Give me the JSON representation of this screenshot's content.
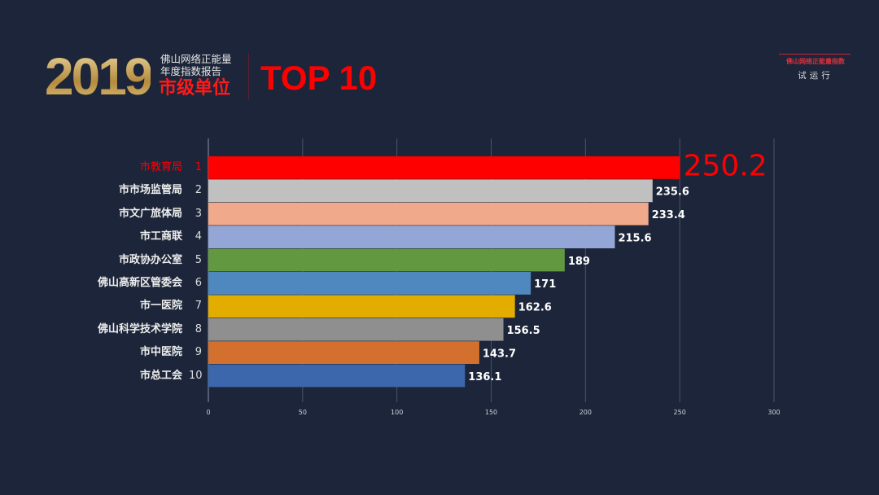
{
  "header": {
    "year": "2019",
    "subtitle_line1": "佛山网络正能量",
    "subtitle_line2": "年度指数报告",
    "subtitle_line3": "市级单位",
    "top_label": "TOP 10",
    "right_title": "佛山网络正能量指数",
    "right_subtitle": "试运行"
  },
  "chart_data": {
    "type": "bar",
    "orientation": "horizontal",
    "categories": [
      "市教育局",
      "市市场监管局",
      "市文广旅体局",
      "市工商联",
      "市政协办公室",
      "佛山高新区管委会",
      "市一医院",
      "佛山科学技术学院",
      "市中医院",
      "市总工会"
    ],
    "ranks": [
      "1",
      "2",
      "3",
      "4",
      "5",
      "6",
      "7",
      "8",
      "9",
      "10"
    ],
    "values": [
      250.2,
      235.6,
      233.4,
      215.6,
      189,
      171,
      162.6,
      156.5,
      143.7,
      136.1
    ],
    "value_labels": [
      "250.2",
      "235.6",
      "233.4",
      "215.6",
      "189",
      "171",
      "162.6",
      "156.5",
      "143.7",
      "136.1"
    ],
    "colors": [
      "#ff0000",
      "#c0c0c0",
      "#f0a98a",
      "#93a6d6",
      "#629840",
      "#4f88bf",
      "#e3ad00",
      "#8f8f8f",
      "#d4702e",
      "#3d67ad"
    ],
    "xlim": [
      0,
      300
    ],
    "xticks": [
      "0",
      "50",
      "100",
      "150",
      "200",
      "250",
      "300"
    ],
    "grid": true,
    "highlight_color": "#ff0000"
  }
}
